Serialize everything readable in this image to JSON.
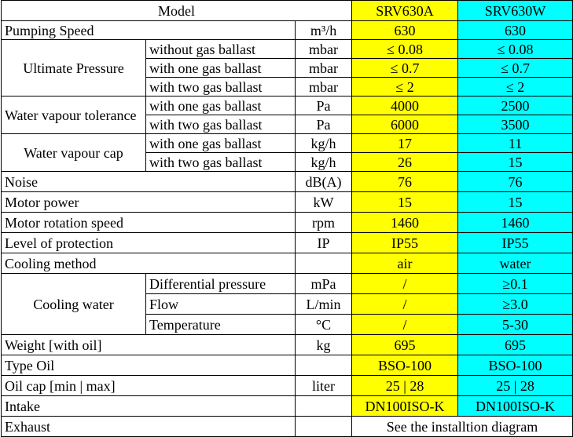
{
  "table": {
    "rows": [
      [
        "Model",
        "SRV630A",
        "SRV630W"
      ],
      [
        "Pumping Speed",
        "m³/h",
        "630",
        "630"
      ],
      [
        "Ultimate Pressure",
        "without gas ballast",
        "mbar",
        "≤ 0.08",
        "≤ 0.08"
      ],
      [
        "with one gas ballast",
        "mbar",
        "≤ 0.7",
        "≤ 0.7"
      ],
      [
        "with two gas ballast",
        "mbar",
        "≤ 2",
        "≤ 2"
      ],
      [
        "Water vapour tolerance",
        "with one gas ballast",
        "Pa",
        "4000",
        "2500"
      ],
      [
        "with two gas ballast",
        "Pa",
        "6000",
        "3500"
      ],
      [
        "Water vapour cap",
        "with one gas ballast",
        "kg/h",
        "17",
        "11"
      ],
      [
        "with two gas ballast",
        "kg/h",
        "26",
        "15"
      ],
      [
        "Noise",
        "dB(A)",
        "76",
        "76"
      ],
      [
        "Motor power",
        "kW",
        "15",
        "15"
      ],
      [
        "Motor rotation speed",
        "rpm",
        "1460",
        "1460"
      ],
      [
        "Level of protection",
        "IP",
        "IP55",
        "IP55"
      ],
      [
        "Cooling method",
        "air",
        "water"
      ],
      [
        "Cooling water",
        "Differential pressure",
        "mPa",
        "/",
        "≥0.1"
      ],
      [
        "Flow",
        "L/min",
        "/",
        "≥3.0"
      ],
      [
        "Temperature",
        "°C",
        "/",
        "5-30"
      ],
      [
        "Weight [with oil]",
        "kg",
        "695",
        "695"
      ],
      [
        "Type Oil",
        "BSO-100",
        "BSO-100"
      ],
      [
        "Oil cap [min | max]",
        "liter",
        "25 | 28",
        "25 | 28"
      ],
      [
        "Intake",
        "DN100ISO-K",
        "DN100ISO-K"
      ],
      [
        "Exhaust",
        "See the installtion diagram"
      ]
    ]
  }
}
